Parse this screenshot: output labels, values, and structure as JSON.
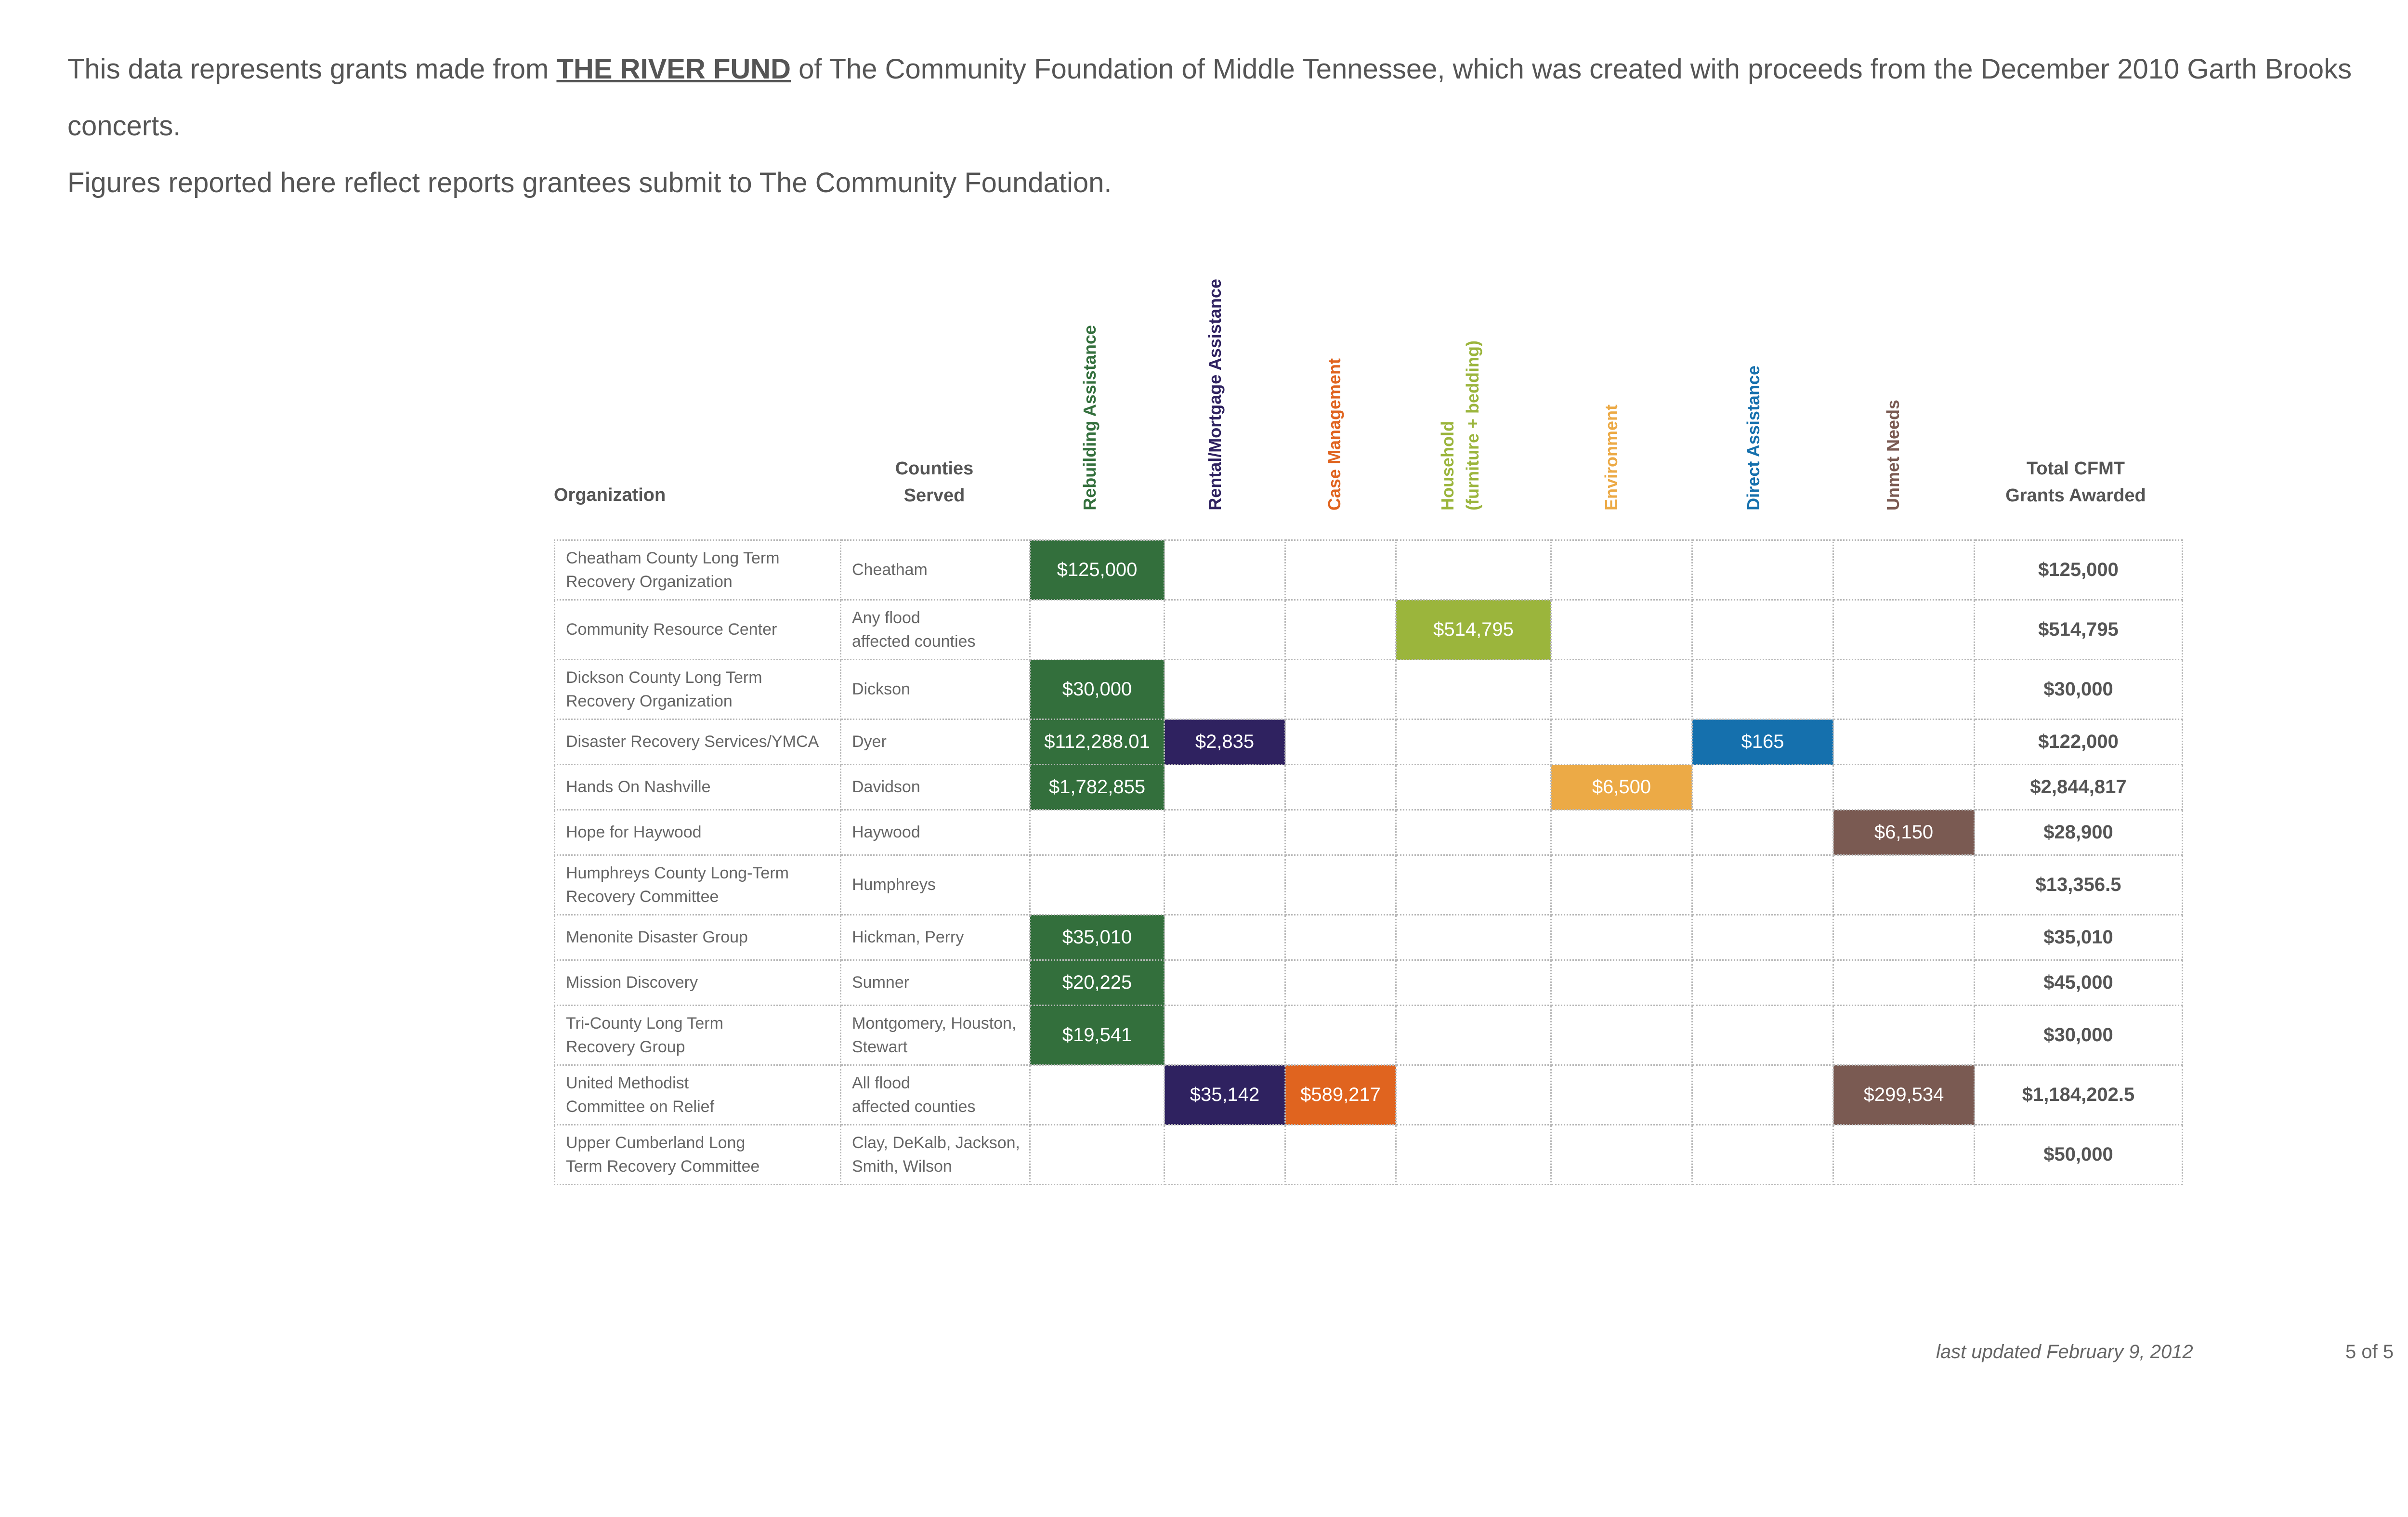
{
  "intro": {
    "line1_before": "This data represents grants made from ",
    "fund_name": "THE RIVER FUND",
    "line1_after": " of The Community Foundation of Middle Tennessee, which was created with proceeds from the December 2010 Garth Brooks concerts.",
    "line2": "Figures reported here reflect reports grantees submit to The Community Foundation."
  },
  "headers": {
    "organization": "Organization",
    "counties_line1": "Counties",
    "counties_line2": "Served",
    "total_line1": "Total CFMT",
    "total_line2": "Grants Awarded"
  },
  "categories": [
    {
      "line1": "Rebuilding Assistance",
      "line2": "",
      "color": "#336f3c"
    },
    {
      "line1": "Rental/Mortgage Assistance",
      "line2": "",
      "color": "#2f2260"
    },
    {
      "line1": "Case Management",
      "line2": "",
      "color": "#e0641f"
    },
    {
      "line1": "Household",
      "line2": "(furniture + bedding)",
      "color": "#9bb53c"
    },
    {
      "line1": "Environment",
      "line2": "",
      "color": "#ecaa46"
    },
    {
      "line1": "Direct Assistance",
      "line2": "",
      "color": "#1570ad"
    },
    {
      "line1": "Unmet Needs",
      "line2": "",
      "color": "#7a5a52"
    }
  ],
  "rows": [
    {
      "org": [
        "Cheatham County Long Term",
        "Recovery Organization"
      ],
      "counties": [
        "Cheatham",
        ""
      ],
      "amounts": [
        "$125,000",
        "",
        "",
        "",
        "",
        "",
        ""
      ],
      "total": "$125,000",
      "short": false
    },
    {
      "org": [
        "Community Resource Center",
        ""
      ],
      "counties": [
        "Any flood",
        "affected counties"
      ],
      "amounts": [
        "",
        "",
        "",
        "$514,795",
        "",
        "",
        ""
      ],
      "total": "$514,795",
      "short": false
    },
    {
      "org": [
        "Dickson County Long Term",
        "Recovery Organization"
      ],
      "counties": [
        "Dickson",
        ""
      ],
      "amounts": [
        "$30,000",
        "",
        "",
        "",
        "",
        "",
        ""
      ],
      "total": "$30,000",
      "short": false
    },
    {
      "org": [
        "Disaster Recovery Services/YMCA",
        ""
      ],
      "counties": [
        "Dyer",
        ""
      ],
      "amounts": [
        "$112,288.01",
        "$2,835",
        "",
        "",
        "",
        "$165",
        ""
      ],
      "total": "$122,000",
      "short": true
    },
    {
      "org": [
        "Hands On Nashville",
        ""
      ],
      "counties": [
        "Davidson",
        ""
      ],
      "amounts": [
        "$1,782,855",
        "",
        "",
        "",
        "$6,500",
        "",
        ""
      ],
      "total": "$2,844,817",
      "short": true
    },
    {
      "org": [
        "Hope for Haywood",
        ""
      ],
      "counties": [
        "Haywood",
        ""
      ],
      "amounts": [
        "",
        "",
        "",
        "",
        "",
        "",
        "$6,150"
      ],
      "total": "$28,900",
      "short": true
    },
    {
      "org": [
        "Humphreys County Long-Term",
        "Recovery Committee"
      ],
      "counties": [
        "Humphreys",
        ""
      ],
      "amounts": [
        "",
        "",
        "",
        "",
        "",
        "",
        ""
      ],
      "total": "$13,356.5",
      "short": false
    },
    {
      "org": [
        "Menonite Disaster Group",
        ""
      ],
      "counties": [
        "Hickman, Perry",
        ""
      ],
      "amounts": [
        "$35,010",
        "",
        "",
        "",
        "",
        "",
        ""
      ],
      "total": "$35,010",
      "short": true
    },
    {
      "org": [
        "Mission Discovery",
        ""
      ],
      "counties": [
        "Sumner",
        ""
      ],
      "amounts": [
        "$20,225",
        "",
        "",
        "",
        "",
        "",
        ""
      ],
      "total": "$45,000",
      "short": true
    },
    {
      "org": [
        "Tri-County Long Term",
        "Recovery Group"
      ],
      "counties": [
        "Montgomery, Houston,",
        "Stewart"
      ],
      "amounts": [
        "$19,541",
        "",
        "",
        "",
        "",
        "",
        ""
      ],
      "total": "$30,000",
      "short": false
    },
    {
      "org": [
        "United Methodist",
        "Committee on Relief"
      ],
      "counties": [
        "All flood",
        "affected counties"
      ],
      "amounts": [
        "",
        "$35,142",
        "$589,217",
        "",
        "",
        "",
        "$299,534"
      ],
      "total": "$1,184,202.5",
      "short": false
    },
    {
      "org": [
        "Upper Cumberland Long",
        "Term Recovery Committee"
      ],
      "counties": [
        "Clay, DeKalb, Jackson,",
        "Smith, Wilson"
      ],
      "amounts": [
        "",
        "",
        "",
        "",
        "",
        "",
        ""
      ],
      "total": "$50,000",
      "short": false
    }
  ],
  "footer": {
    "updated": "last updated February 9, 2012",
    "page": "5 of 5"
  }
}
